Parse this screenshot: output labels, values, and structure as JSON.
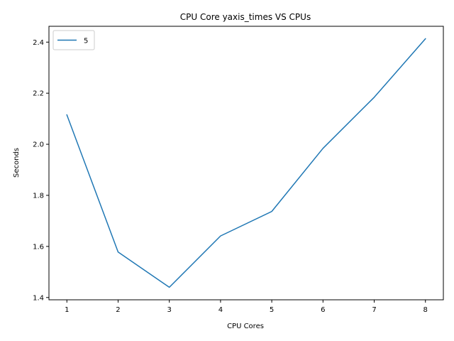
{
  "chart_data": {
    "type": "line",
    "title": "CPU Core yaxis_times VS CPUs",
    "xlabel": "CPU Cores",
    "ylabel": "Seconds",
    "x": [
      1,
      2,
      3,
      4,
      5,
      6,
      7,
      8
    ],
    "series": [
      {
        "name": "5",
        "color": "#1f77b4",
        "values": [
          2.115,
          1.578,
          1.44,
          1.641,
          1.737,
          1.984,
          2.184,
          2.413
        ]
      }
    ],
    "xlim": [
      0.65,
      8.35
    ],
    "ylim": [
      1.391,
      2.462
    ],
    "xticks": [
      1,
      2,
      3,
      4,
      5,
      6,
      7,
      8
    ],
    "xtick_labels": [
      "1",
      "2",
      "3",
      "4",
      "5",
      "6",
      "7",
      "8"
    ],
    "yticks": [
      1.4,
      1.6,
      1.8,
      2.0,
      2.2,
      2.4
    ],
    "ytick_labels": [
      "1.4",
      "1.6",
      "1.8",
      "2.0",
      "2.2",
      "2.4"
    ],
    "grid": false,
    "legend_position": "upper-left"
  }
}
